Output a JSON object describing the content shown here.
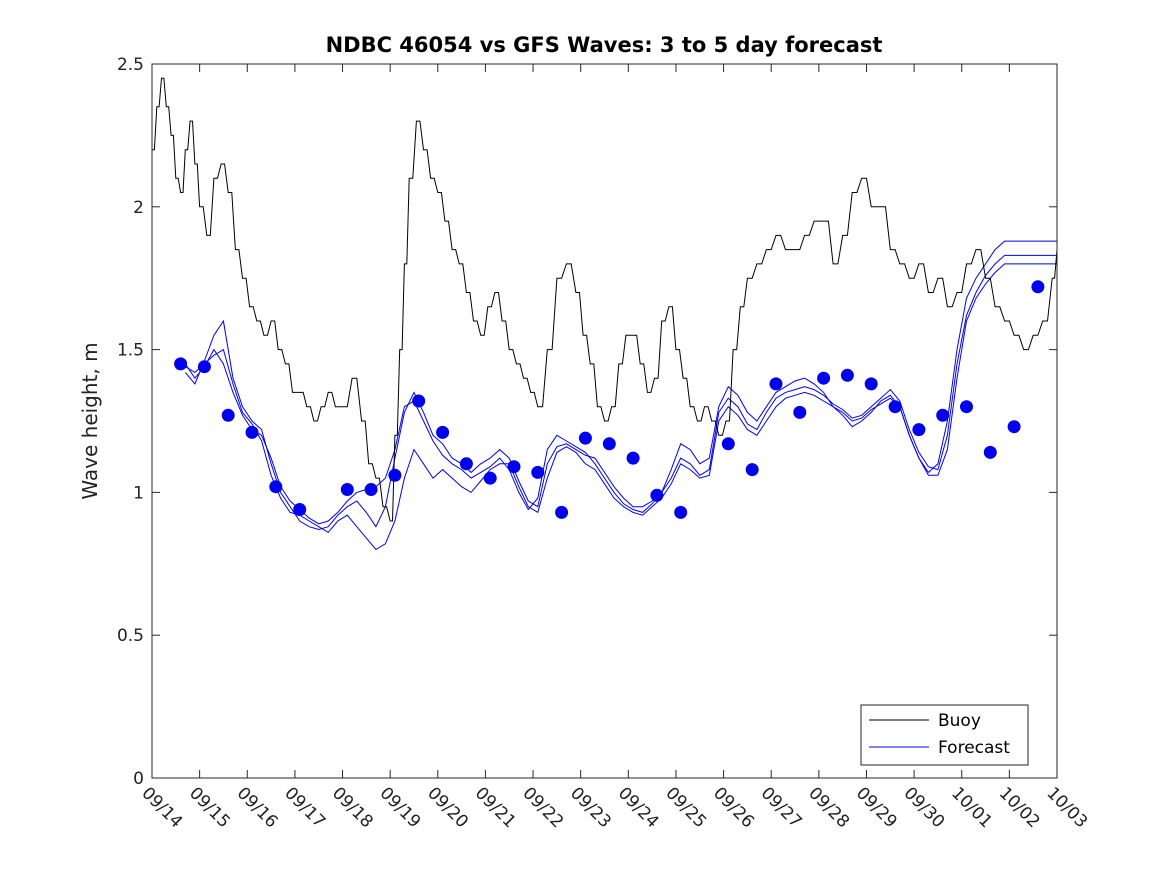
{
  "chart_data": {
    "type": "line",
    "title": "NDBC 46054 vs GFS Waves: 3 to 5 day forecast",
    "xlabel": "",
    "ylabel": "Wave height, m",
    "x_unit": "days since 09/14",
    "xlim": [
      0,
      19
    ],
    "ylim": [
      0,
      2.5
    ],
    "yticks": [
      0,
      0.5,
      1,
      1.5,
      2,
      2.5
    ],
    "ytick_labels": [
      "0",
      "0.5",
      "1",
      "1.5",
      "2",
      "2.5"
    ],
    "xticks": [
      0,
      1,
      2,
      3,
      4,
      5,
      6,
      7,
      8,
      9,
      10,
      11,
      12,
      13,
      14,
      15,
      16,
      17,
      18,
      19
    ],
    "xtick_labels": [
      "09/14",
      "09/15",
      "09/16",
      "09/17",
      "09/18",
      "09/19",
      "09/20",
      "09/21",
      "09/22",
      "09/23",
      "09/24",
      "09/25",
      "09/26",
      "09/27",
      "09/28",
      "09/29",
      "09/30",
      "10/01",
      "10/02",
      "10/03"
    ],
    "grid": false,
    "legend": {
      "placement": "bottom-right",
      "entries": [
        "Buoy",
        "Forecast"
      ]
    },
    "colors": {
      "buoy": "#000000",
      "forecast": "#0000ee",
      "marker": "#0000ee"
    },
    "series": [
      {
        "name": "Buoy",
        "x": [
          0.0,
          0.1,
          0.2,
          0.3,
          0.4,
          0.5,
          0.6,
          0.7,
          0.8,
          0.9,
          1.0,
          1.15,
          1.3,
          1.45,
          1.6,
          1.75,
          1.9,
          2.05,
          2.2,
          2.35,
          2.5,
          2.65,
          2.8,
          2.95,
          3.1,
          3.25,
          3.4,
          3.55,
          3.7,
          3.85,
          4.0,
          4.2,
          4.4,
          4.55,
          4.7,
          4.85,
          5.0,
          5.1,
          5.2,
          5.3,
          5.4,
          5.55,
          5.7,
          5.85,
          6.0,
          6.15,
          6.3,
          6.45,
          6.6,
          6.75,
          6.9,
          7.05,
          7.2,
          7.35,
          7.5,
          7.65,
          7.8,
          7.95,
          8.1,
          8.3,
          8.5,
          8.7,
          8.9,
          9.05,
          9.2,
          9.35,
          9.5,
          9.65,
          9.8,
          9.95,
          10.1,
          10.25,
          10.4,
          10.55,
          10.7,
          10.85,
          11.0,
          11.15,
          11.3,
          11.45,
          11.6,
          11.75,
          11.9,
          12.05,
          12.2,
          12.35,
          12.5,
          12.7,
          12.9,
          13.1,
          13.3,
          13.5,
          13.7,
          13.9,
          14.1,
          14.3,
          14.5,
          14.7,
          14.9,
          15.1,
          15.3,
          15.5,
          15.7,
          15.9,
          16.1,
          16.3,
          16.5,
          16.7,
          16.9,
          17.1,
          17.3,
          17.5,
          17.7,
          17.9,
          18.1,
          18.3,
          18.5,
          18.7,
          18.9,
          19.0
        ],
        "values": [
          2.2,
          2.35,
          2.45,
          2.35,
          2.25,
          2.1,
          2.05,
          2.2,
          2.3,
          2.15,
          2.0,
          1.9,
          2.1,
          2.15,
          2.05,
          1.85,
          1.75,
          1.65,
          1.6,
          1.55,
          1.6,
          1.5,
          1.45,
          1.35,
          1.35,
          1.3,
          1.25,
          1.3,
          1.35,
          1.3,
          1.3,
          1.4,
          1.25,
          1.1,
          1.05,
          0.95,
          0.9,
          1.2,
          1.5,
          1.8,
          2.1,
          2.3,
          2.2,
          2.1,
          2.05,
          1.95,
          1.85,
          1.8,
          1.7,
          1.6,
          1.55,
          1.65,
          1.7,
          1.6,
          1.5,
          1.45,
          1.4,
          1.35,
          1.3,
          1.5,
          1.75,
          1.8,
          1.7,
          1.55,
          1.45,
          1.3,
          1.25,
          1.3,
          1.45,
          1.55,
          1.55,
          1.45,
          1.35,
          1.4,
          1.6,
          1.65,
          1.5,
          1.4,
          1.3,
          1.25,
          1.3,
          1.25,
          1.2,
          1.25,
          1.5,
          1.65,
          1.75,
          1.8,
          1.85,
          1.9,
          1.85,
          1.85,
          1.9,
          1.95,
          1.95,
          1.8,
          1.9,
          2.05,
          2.1,
          2.0,
          2.0,
          1.85,
          1.8,
          1.75,
          1.8,
          1.7,
          1.75,
          1.65,
          1.7,
          1.8,
          1.85,
          1.75,
          1.65,
          1.6,
          1.55,
          1.5,
          1.55,
          1.6,
          1.75,
          1.85
        ]
      },
      {
        "name": "Forecast",
        "runs": [
          {
            "x": [
              0.7,
              0.9,
              1.1,
              1.3,
              1.5,
              1.7,
              1.9,
              2.1,
              2.3,
              2.5,
              2.7,
              2.9,
              3.1,
              3.3,
              3.5,
              3.7,
              3.9,
              4.1,
              4.3,
              4.5,
              4.7,
              4.9,
              5.1,
              5.3,
              5.5,
              5.7,
              5.9,
              6.1,
              6.3,
              6.5,
              6.7,
              6.9,
              7.1,
              7.3,
              7.5,
              7.7,
              7.9,
              8.1,
              8.3,
              8.5,
              8.7,
              8.9,
              9.1,
              9.3,
              9.5,
              9.7,
              9.9,
              10.1,
              10.3,
              10.5,
              10.7,
              10.9,
              11.1,
              11.3,
              11.5,
              11.7,
              11.9,
              12.1,
              12.3,
              12.5,
              12.7,
              12.9,
              13.1,
              13.3,
              13.5,
              13.7,
              13.9,
              14.1,
              14.3,
              14.5,
              14.7,
              14.9,
              15.1,
              15.3,
              15.5,
              15.7,
              15.9,
              16.1,
              16.3,
              16.5,
              16.7,
              16.9,
              17.1,
              17.3,
              17.5,
              17.7,
              17.9,
              18.1,
              18.3,
              18.5,
              18.7,
              18.9,
              19.0
            ],
            "values": [
              1.45,
              1.4,
              1.44,
              1.5,
              1.45,
              1.35,
              1.27,
              1.22,
              1.2,
              1.12,
              1.02,
              0.97,
              0.94,
              0.91,
              0.89,
              0.9,
              0.93,
              0.97,
              1.0,
              1.01,
              1.02,
              1.05,
              1.15,
              1.3,
              1.32,
              1.25,
              1.18,
              1.13,
              1.1,
              1.08,
              1.05,
              1.07,
              1.09,
              1.12,
              1.08,
              1.0,
              0.94,
              0.98,
              1.15,
              1.2,
              1.18,
              1.16,
              1.14,
              1.1,
              1.05,
              1.0,
              0.96,
              0.94,
              0.93,
              0.96,
              1.0,
              1.08,
              1.17,
              1.15,
              1.1,
              1.12,
              1.3,
              1.37,
              1.34,
              1.28,
              1.25,
              1.3,
              1.35,
              1.37,
              1.39,
              1.4,
              1.38,
              1.35,
              1.3,
              1.27,
              1.23,
              1.25,
              1.28,
              1.32,
              1.34,
              1.3,
              1.2,
              1.12,
              1.07,
              1.1,
              1.25,
              1.5,
              1.68,
              1.75,
              1.8,
              1.85,
              1.88,
              1.88,
              1.88,
              1.88,
              1.88,
              1.88,
              1.88
            ]
          },
          {
            "x": [
              0.7,
              0.9,
              1.1,
              1.3,
              1.5,
              1.7,
              1.9,
              2.1,
              2.3,
              2.5,
              2.7,
              2.9,
              3.1,
              3.3,
              3.5,
              3.7,
              3.9,
              4.1,
              4.3,
              4.5,
              4.7,
              4.9,
              5.1,
              5.3,
              5.5,
              5.7,
              5.9,
              6.1,
              6.3,
              6.5,
              6.7,
              6.9,
              7.1,
              7.3,
              7.5,
              7.7,
              7.9,
              8.1,
              8.3,
              8.5,
              8.7,
              8.9,
              9.1,
              9.3,
              9.5,
              9.7,
              9.9,
              10.1,
              10.3,
              10.5,
              10.7,
              10.9,
              11.1,
              11.3,
              11.5,
              11.7,
              11.9,
              12.1,
              12.3,
              12.5,
              12.7,
              12.9,
              13.1,
              13.3,
              13.5,
              13.7,
              13.9,
              14.1,
              14.3,
              14.5,
              14.7,
              14.9,
              15.1,
              15.3,
              15.5,
              15.7,
              15.9,
              16.1,
              16.3,
              16.5,
              16.7,
              16.9,
              17.1,
              17.3,
              17.5,
              17.7,
              17.9,
              18.1,
              18.3,
              18.5,
              18.7,
              18.9,
              19.0
            ],
            "values": [
              1.42,
              1.38,
              1.46,
              1.55,
              1.6,
              1.4,
              1.3,
              1.25,
              1.22,
              1.1,
              1.0,
              0.95,
              0.9,
              0.88,
              0.87,
              0.88,
              0.92,
              0.95,
              0.97,
              0.93,
              0.88,
              0.95,
              1.12,
              1.28,
              1.35,
              1.28,
              1.2,
              1.17,
              1.12,
              1.1,
              1.07,
              1.1,
              1.12,
              1.15,
              1.12,
              1.04,
              0.97,
              0.95,
              1.1,
              1.16,
              1.17,
              1.15,
              1.13,
              1.12,
              1.07,
              1.02,
              0.98,
              0.95,
              0.95,
              0.97,
              1.0,
              1.05,
              1.12,
              1.1,
              1.06,
              1.08,
              1.28,
              1.33,
              1.3,
              1.24,
              1.22,
              1.28,
              1.33,
              1.35,
              1.36,
              1.37,
              1.36,
              1.34,
              1.31,
              1.29,
              1.26,
              1.27,
              1.3,
              1.33,
              1.36,
              1.32,
              1.22,
              1.14,
              1.09,
              1.08,
              1.2,
              1.45,
              1.62,
              1.7,
              1.76,
              1.8,
              1.83,
              1.83,
              1.83,
              1.83,
              1.83,
              1.83,
              1.83
            ]
          },
          {
            "x": [
              0.7,
              0.9,
              1.1,
              1.3,
              1.5,
              1.7,
              1.9,
              2.1,
              2.3,
              2.5,
              2.7,
              2.9,
              3.1,
              3.3,
              3.5,
              3.7,
              3.9,
              4.1,
              4.3,
              4.5,
              4.7,
              4.9,
              5.1,
              5.3,
              5.5,
              5.7,
              5.9,
              6.1,
              6.3,
              6.5,
              6.7,
              6.9,
              7.1,
              7.3,
              7.5,
              7.7,
              7.9,
              8.1,
              8.3,
              8.5,
              8.7,
              8.9,
              9.1,
              9.3,
              9.5,
              9.7,
              9.9,
              10.1,
              10.3,
              10.5,
              10.7,
              10.9,
              11.1,
              11.3,
              11.5,
              11.7,
              11.9,
              12.1,
              12.3,
              12.5,
              12.7,
              12.9,
              13.1,
              13.3,
              13.5,
              13.7,
              13.9,
              14.1,
              14.3,
              14.5,
              14.7,
              14.9,
              15.1,
              15.3,
              15.5,
              15.7,
              15.9,
              16.1,
              16.3,
              16.5,
              16.7,
              16.9,
              17.1,
              17.3,
              17.5,
              17.7,
              17.9,
              18.1,
              18.3,
              18.5,
              18.7,
              18.9,
              19.0
            ],
            "values": [
              1.44,
              1.42,
              1.45,
              1.48,
              1.5,
              1.38,
              1.28,
              1.24,
              1.18,
              1.06,
              0.98,
              0.93,
              0.92,
              0.9,
              0.88,
              0.86,
              0.9,
              0.92,
              0.88,
              0.84,
              0.8,
              0.82,
              0.9,
              1.05,
              1.15,
              1.1,
              1.05,
              1.08,
              1.05,
              1.02,
              1.0,
              1.04,
              1.08,
              1.1,
              1.1,
              1.02,
              0.95,
              0.93,
              1.05,
              1.14,
              1.16,
              1.14,
              1.1,
              1.08,
              1.03,
              0.98,
              0.95,
              0.93,
              0.92,
              0.95,
              0.98,
              1.03,
              1.1,
              1.08,
              1.05,
              1.06,
              1.25,
              1.3,
              1.27,
              1.22,
              1.2,
              1.25,
              1.3,
              1.33,
              1.34,
              1.35,
              1.34,
              1.32,
              1.3,
              1.28,
              1.25,
              1.26,
              1.29,
              1.31,
              1.33,
              1.3,
              1.2,
              1.12,
              1.06,
              1.06,
              1.15,
              1.4,
              1.6,
              1.68,
              1.73,
              1.77,
              1.8,
              1.8,
              1.8,
              1.8,
              1.8,
              1.8,
              1.8
            ]
          }
        ],
        "markers": {
          "x": [
            0.6,
            1.1,
            1.6,
            2.1,
            2.6,
            3.1,
            4.1,
            4.6,
            5.1,
            5.6,
            6.1,
            6.6,
            7.1,
            7.6,
            8.1,
            8.6,
            9.1,
            9.6,
            10.1,
            10.6,
            11.1,
            12.1,
            12.6,
            13.1,
            13.6,
            14.1,
            14.6,
            15.1,
            15.6,
            16.1,
            16.6,
            17.1,
            17.6,
            18.1,
            18.6
          ],
          "values": [
            1.45,
            1.44,
            1.27,
            1.21,
            1.02,
            0.94,
            1.01,
            1.01,
            1.06,
            1.32,
            1.21,
            1.1,
            1.05,
            1.09,
            1.07,
            0.93,
            1.19,
            1.17,
            1.12,
            0.99,
            0.93,
            1.17,
            1.08,
            1.38,
            1.28,
            1.4,
            1.41,
            1.38,
            1.3,
            1.22,
            1.27,
            1.3,
            1.14,
            1.23,
            1.72
          ]
        }
      }
    ]
  }
}
